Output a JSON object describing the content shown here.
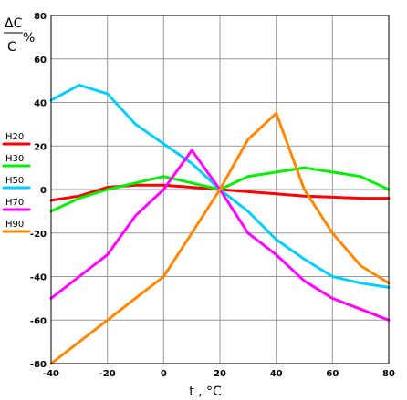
{
  "chart_data": {
    "type": "line",
    "xlabel": "t , °C",
    "ylabel": {
      "numerator": "ΔC",
      "denominator": "C",
      "unit": "%"
    },
    "xlim": [
      -40,
      80
    ],
    "ylim": [
      -80,
      80
    ],
    "x_ticks": [
      -40,
      -20,
      0,
      20,
      40,
      60,
      80
    ],
    "y_ticks": [
      80,
      60,
      40,
      20,
      0,
      -20,
      -40,
      -60,
      -80
    ],
    "x_tick_labels": [
      "-40",
      "-20",
      "0",
      "20",
      "40",
      "60",
      "80"
    ],
    "y_tick_labels": [
      "80",
      "60",
      "40",
      "20",
      "0",
      "-20",
      "-40",
      "-60",
      "-80"
    ],
    "grid": true,
    "legend_position": "left",
    "series": [
      {
        "name": "H20",
        "color": "#ff0000",
        "x": [
          -40,
          -30,
          -20,
          -10,
          0,
          10,
          20,
          30,
          40,
          50,
          60,
          70,
          80
        ],
        "y": [
          -5,
          -3,
          1,
          2,
          2,
          1,
          0,
          -1,
          -2,
          -3,
          -3.5,
          -4,
          -4
        ]
      },
      {
        "name": "H30",
        "color": "#00ee00",
        "x": [
          -40,
          -30,
          -20,
          -10,
          0,
          10,
          20,
          30,
          40,
          50,
          60,
          70,
          80
        ],
        "y": [
          -10,
          -4,
          0,
          3,
          6,
          3,
          0,
          6,
          8,
          10,
          8,
          6,
          0
        ]
      },
      {
        "name": "H50",
        "color": "#00ccff",
        "x": [
          -40,
          -30,
          -20,
          -10,
          0,
          10,
          20,
          30,
          40,
          50,
          60,
          70,
          80
        ],
        "y": [
          41,
          48,
          44,
          30,
          21,
          12,
          0,
          -10,
          -23,
          -32,
          -40,
          -43,
          -45
        ]
      },
      {
        "name": "H70",
        "color": "#ff00ff",
        "x": [
          -40,
          -30,
          -20,
          -10,
          0,
          10,
          20,
          30,
          40,
          50,
          60,
          70,
          80
        ],
        "y": [
          -50,
          -40,
          -30,
          -12,
          0,
          18,
          0,
          -20,
          -30,
          -42,
          -50,
          -55,
          -60
        ]
      },
      {
        "name": "H90",
        "color": "#ff8800",
        "x": [
          -40,
          -20,
          0,
          10,
          20,
          30,
          40,
          50,
          60,
          70,
          80
        ],
        "y": [
          -80,
          -60,
          -40,
          -20,
          0,
          23,
          35,
          0,
          -20,
          -35,
          -43
        ]
      }
    ]
  }
}
